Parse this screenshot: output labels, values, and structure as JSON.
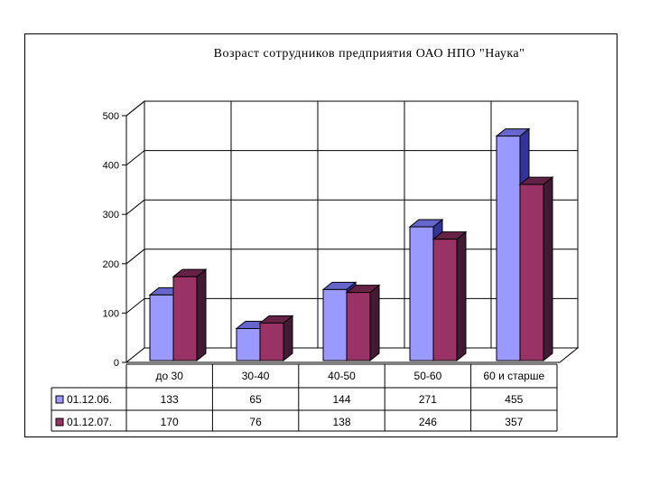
{
  "chart_data": {
    "type": "bar",
    "title": "Возраст сотрудников предприятия ОАО НПО \"Наука\"",
    "categories": [
      "до 30",
      "30-40",
      "40-50",
      "50-60",
      "60 и старше"
    ],
    "series": [
      {
        "name": "01.12.06.",
        "values": [
          133,
          65,
          144,
          271,
          455
        ]
      },
      {
        "name": "01.12.07.",
        "values": [
          170,
          76,
          138,
          246,
          357
        ]
      }
    ],
    "ylim": [
      0,
      500
    ],
    "yticks": [
      "0",
      "100",
      "200",
      "300",
      "400",
      "500"
    ],
    "grid": true,
    "legend": "data-table",
    "colors": {
      "series1_front": "#9999ff",
      "series1_top": "#6666cc",
      "series1_side": "#333399",
      "series2_front": "#993366",
      "series2_top": "#662244",
      "series2_side": "#441a33"
    }
  }
}
